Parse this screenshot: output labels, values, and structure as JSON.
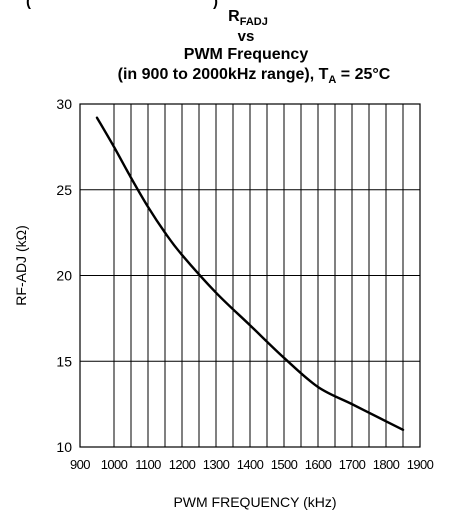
{
  "chart_data": {
    "type": "line",
    "title": {
      "top_partial": "(",
      "top_partial_right": ")",
      "line1_main": "R",
      "line1_sub": "FADJ",
      "line2": "vs",
      "line3": "PWM Frequency",
      "line4_main": "(in 900 to 2000kHz range), T",
      "line4_sub": "A",
      "line4_rest": " = 25°C"
    },
    "xlabel": "PWM FREQUENCY (kHz)",
    "ylabel": "RF-ADJ (kΩ)",
    "xlim": [
      900,
      1900
    ],
    "ylim": [
      10,
      30
    ],
    "x_ticks": [
      900,
      1000,
      1100,
      1200,
      1300,
      1400,
      1500,
      1600,
      1700,
      1800,
      1900
    ],
    "y_ticks": [
      10,
      15,
      20,
      25,
      30
    ],
    "x_gridlines_minor": [
      1050,
      1150,
      1250,
      1350,
      1450,
      1550,
      1650,
      1750,
      1850
    ],
    "grid": true,
    "series": [
      {
        "color": "#000000",
        "x": [
          950,
          1000,
          1050,
          1100,
          1150,
          1200,
          1300,
          1400,
          1500,
          1600,
          1700,
          1800,
          1850
        ],
        "y": [
          29.2,
          27.5,
          25.7,
          24.0,
          22.5,
          21.2,
          19.0,
          17.1,
          15.2,
          13.5,
          12.5,
          11.5,
          11.0
        ]
      }
    ]
  }
}
